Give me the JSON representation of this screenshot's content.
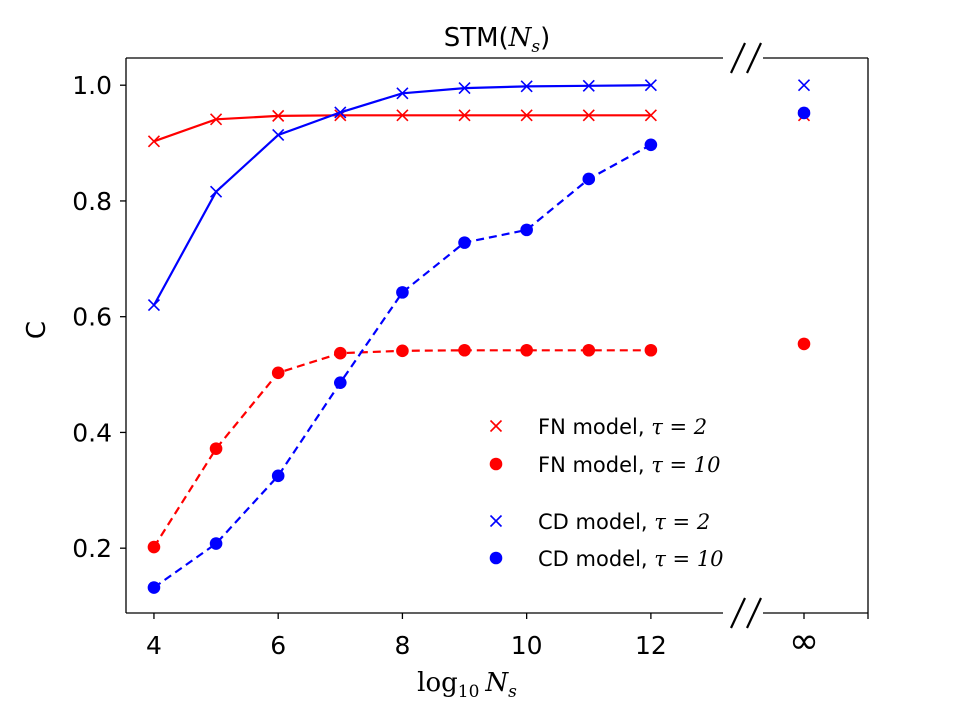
{
  "chart_data": {
    "type": "line",
    "title_main": "STM(",
    "title_var": "N",
    "title_sub": "s",
    "title_close": ")",
    "xlabel_fn": "log",
    "xlabel_base": "10",
    "xlabel_var": "N",
    "xlabel_sub": "s",
    "ylabel": "C",
    "xlim": [
      3.55,
      13.0
    ],
    "ylim": [
      0.088,
      1.047
    ],
    "x_ticks": [
      4,
      6,
      8,
      10,
      12
    ],
    "x_tick_labels": [
      "4",
      "6",
      "8",
      "10",
      "12"
    ],
    "y_ticks": [
      0.2,
      0.4,
      0.6,
      0.8,
      1.0
    ],
    "y_tick_labels": [
      "0.2",
      "0.4",
      "0.6",
      "0.8",
      "1.0"
    ],
    "inf_label": "∞",
    "x": [
      4,
      5,
      6,
      7,
      8,
      9,
      10,
      11,
      12
    ],
    "series": [
      {
        "name": "FN model, τ = 2",
        "legend_label": "FN model, ",
        "legend_param": "τ = 2",
        "color": "#ff0000",
        "marker": "x",
        "linestyle": "solid",
        "values": [
          0.903,
          0.941,
          0.947,
          0.948,
          0.948,
          0.948,
          0.948,
          0.948,
          0.948
        ],
        "inf_value": 0.948
      },
      {
        "name": "FN model, τ = 10",
        "legend_label": "FN model, ",
        "legend_param": "τ = 10",
        "color": "#ff0000",
        "marker": "o",
        "linestyle": "dashed",
        "values": [
          0.202,
          0.372,
          0.503,
          0.537,
          0.541,
          0.542,
          0.542,
          0.542,
          0.542
        ],
        "inf_value": 0.553
      },
      {
        "name": "CD model, τ = 2",
        "legend_label": "CD model, ",
        "legend_param": "τ = 2",
        "color": "#0000ff",
        "marker": "x",
        "linestyle": "solid",
        "values": [
          0.62,
          0.816,
          0.914,
          0.953,
          0.986,
          0.995,
          0.998,
          0.999,
          1.0
        ],
        "inf_value": 1.0
      },
      {
        "name": "CD model, τ = 10",
        "legend_label": "CD model, ",
        "legend_param": "τ = 10",
        "color": "#0000ff",
        "marker": "o",
        "linestyle": "dashed",
        "values": [
          0.132,
          0.208,
          0.325,
          0.486,
          0.642,
          0.728,
          0.75,
          0.838,
          0.897
        ],
        "inf_value": 0.952
      }
    ],
    "legend_position": "lower-right"
  }
}
